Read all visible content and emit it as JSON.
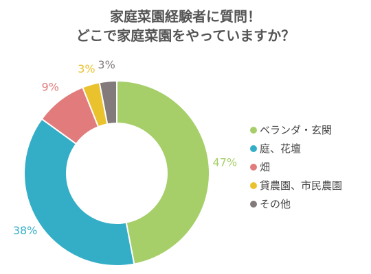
{
  "chart_data": {
    "type": "pie",
    "title_line1": "家庭菜園経験者に質問！",
    "title_line2": "どこで家庭菜園をやっていますか？",
    "slices": [
      {
        "label": "ベランダ・玄関",
        "value": 47,
        "display": "47%",
        "color": "#a6cf6a"
      },
      {
        "label": "庭、花壇",
        "value": 38,
        "display": "38%",
        "color": "#34aec7"
      },
      {
        "label": "畑",
        "value": 9,
        "display": "9%",
        "color": "#e27c7c"
      },
      {
        "label": "貸農園、市民農園",
        "value": 3,
        "display": "3%",
        "color": "#e9c22e"
      },
      {
        "label": "その他",
        "value": 3,
        "display": "3%",
        "color": "#837b7b"
      }
    ],
    "donut": true,
    "legend_position": "right"
  }
}
